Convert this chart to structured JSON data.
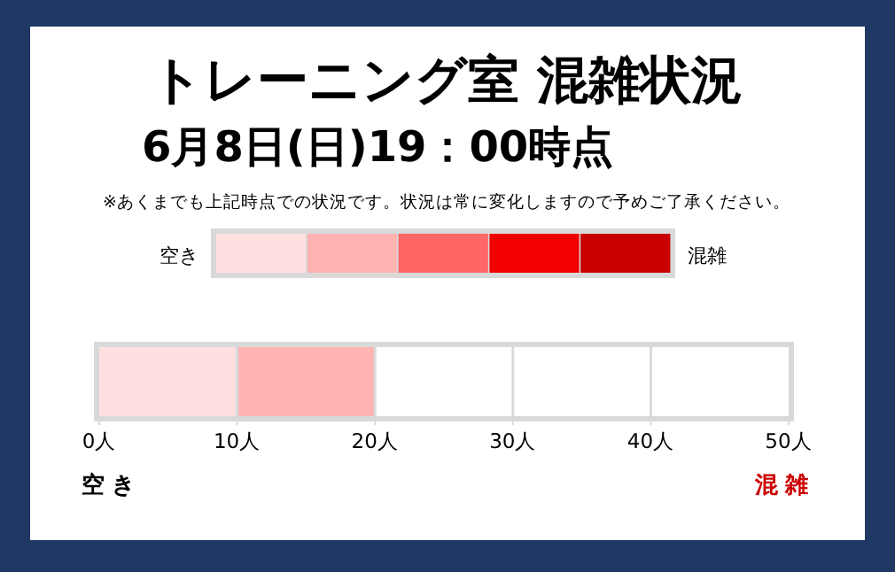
{
  "chart_data": {
    "type": "bar",
    "orientation": "horizontal",
    "stacked": true,
    "title": "トレーニング室 混雑状況",
    "subtitle": "6月8日(日)19：00時点",
    "annotations": [
      "※あくまでも上記時点での状況です。状況は常に変化しますので予めご了承ください。",
      "空き",
      "混雑",
      "空き",
      "混雑"
    ],
    "categories": [
      null
    ],
    "series": [
      {
        "color": "#ffe0e0",
        "values": [
          10
        ]
      },
      {
        "color": "#ffb3b3",
        "values": [
          10
        ]
      }
    ],
    "xlim": [
      0,
      50
    ],
    "xticks": [
      {
        "value": 0,
        "label": "0人"
      },
      {
        "value": 10,
        "label": "10人"
      },
      {
        "value": 20,
        "label": "20人"
      },
      {
        "value": 30,
        "label": "30人"
      },
      {
        "value": 40,
        "label": "40人"
      },
      {
        "value": 50,
        "label": "50人"
      }
    ],
    "grid": "x"
  }
}
